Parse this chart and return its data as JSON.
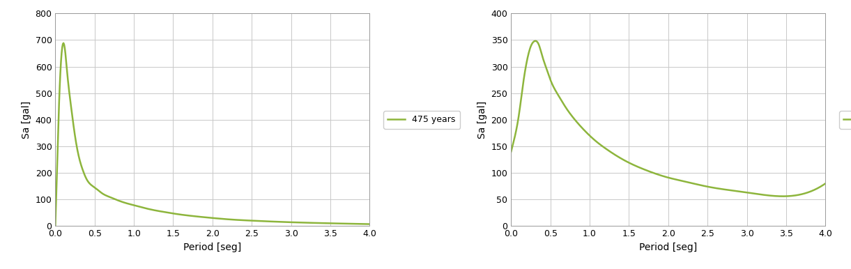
{
  "line_color": "#8db53c",
  "line_width": 1.8,
  "legend_label": "475 years",
  "ylabel": "Sa [gal]",
  "xlabel": "Period [seg]",
  "background_color": "#ffffff",
  "grid_color": "#c8c8c8",
  "left_chart": {
    "xlim": [
      0,
      4.0
    ],
    "ylim": [
      0,
      800
    ],
    "yticks": [
      0,
      100,
      200,
      300,
      400,
      500,
      600,
      700,
      800
    ],
    "xticks": [
      0.0,
      0.5,
      1.0,
      1.5,
      2.0,
      2.5,
      3.0,
      3.5,
      4.0
    ],
    "x": [
      0.0,
      0.02,
      0.05,
      0.08,
      0.1,
      0.12,
      0.15,
      0.2,
      0.25,
      0.3,
      0.35,
      0.4,
      0.5,
      0.6,
      0.7,
      0.8,
      0.9,
      1.0,
      1.1,
      1.2,
      1.3,
      1.4,
      1.5,
      1.7,
      2.0,
      2.2,
      2.5,
      3.0,
      3.5,
      4.0
    ],
    "y": [
      0.0,
      200,
      480,
      650,
      688,
      670,
      580,
      450,
      340,
      260,
      210,
      175,
      145,
      122,
      108,
      96,
      86,
      78,
      70,
      63,
      57,
      52,
      47,
      39,
      30,
      25,
      20,
      14,
      10,
      7
    ]
  },
  "right_chart": {
    "xlim": [
      0,
      4.0
    ],
    "ylim": [
      0,
      400
    ],
    "yticks": [
      0,
      50,
      100,
      150,
      200,
      250,
      300,
      350,
      400
    ],
    "xticks": [
      0.0,
      0.5,
      1.0,
      1.5,
      2.0,
      2.5,
      3.0,
      3.5,
      4.0
    ],
    "x": [
      0.0,
      0.05,
      0.1,
      0.15,
      0.2,
      0.25,
      0.3,
      0.35,
      0.4,
      0.45,
      0.5,
      0.6,
      0.7,
      0.8,
      0.9,
      1.0,
      1.1,
      1.2,
      1.3,
      1.5,
      1.7,
      2.0,
      2.2,
      2.5,
      3.0,
      3.5,
      4.0
    ],
    "y": [
      140,
      170,
      210,
      265,
      310,
      338,
      348,
      342,
      318,
      296,
      275,
      246,
      222,
      202,
      185,
      170,
      157,
      146,
      136,
      119,
      106,
      91,
      84,
      74,
      63,
      56,
      80
    ]
  }
}
